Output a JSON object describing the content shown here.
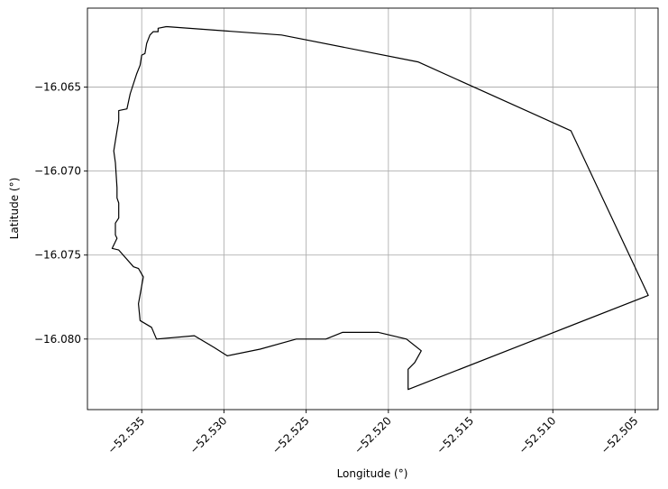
{
  "chart_data": {
    "type": "line",
    "title": "",
    "xlabel": "Longitude (°)",
    "ylabel": "Latitude (°)",
    "xlim": [
      -52.5383,
      -52.5036
    ],
    "ylim": [
      -16.0842,
      -16.0603
    ],
    "grid": true,
    "legend": "none",
    "x_ticks": [
      {
        "value": -52.535,
        "label": "−52.535"
      },
      {
        "value": -52.53,
        "label": "−52.530"
      },
      {
        "value": -52.525,
        "label": "−52.525"
      },
      {
        "value": -52.52,
        "label": "−52.520"
      },
      {
        "value": -52.515,
        "label": "−52.515"
      },
      {
        "value": -52.51,
        "label": "−52.510"
      },
      {
        "value": -52.505,
        "label": "−52.505"
      }
    ],
    "y_ticks": [
      {
        "value": -16.065,
        "label": "−16.065"
      },
      {
        "value": -16.07,
        "label": "−16.070"
      },
      {
        "value": -16.075,
        "label": "−16.075"
      },
      {
        "value": -16.08,
        "label": "−16.080"
      }
    ],
    "series": [
      {
        "color": "#000000",
        "x": [
          -52.5335,
          -52.5265,
          -52.5182,
          -52.5089,
          -52.5042,
          -52.5188,
          -52.5188,
          -52.5184,
          -52.518,
          -52.5189,
          -52.5206,
          -52.5216,
          -52.5228,
          -52.5238,
          -52.5256,
          -52.5278,
          -52.5298,
          -52.5306,
          -52.5318,
          -52.5341,
          -52.5344,
          -52.5351,
          -52.5352,
          -52.5349,
          -52.5352,
          -52.5355,
          -52.5364,
          -52.5368,
          -52.5365,
          -52.5366,
          -52.5366,
          -52.5364,
          -52.5364,
          -52.5365,
          -52.5365,
          -52.5366,
          -52.5367,
          -52.5365,
          -52.5364,
          -52.5364,
          -52.5359,
          -52.5357,
          -52.5353,
          -52.5351,
          -52.535,
          -52.5348,
          -52.5347,
          -52.5345,
          -52.5343,
          -52.534,
          -52.534,
          -52.5335
        ],
        "y": [
          -16.0614,
          -16.0619,
          -16.0635,
          -16.0676,
          -16.0774,
          -16.083,
          -16.0818,
          -16.0814,
          -16.0807,
          -16.08,
          -16.0796,
          -16.0796,
          -16.0796,
          -16.08,
          -16.08,
          -16.0806,
          -16.081,
          -16.0805,
          -16.0798,
          -16.08,
          -16.0793,
          -16.0789,
          -16.0779,
          -16.0763,
          -16.0758,
          -16.0757,
          -16.0747,
          -16.0746,
          -16.074,
          -16.0738,
          -16.0731,
          -16.0728,
          -16.0719,
          -16.0716,
          -16.071,
          -16.0695,
          -16.0688,
          -16.0676,
          -16.067,
          -16.0664,
          -16.0663,
          -16.0654,
          -16.0642,
          -16.0637,
          -16.0631,
          -16.063,
          -16.0624,
          -16.0619,
          -16.0617,
          -16.0617,
          -16.0615,
          -16.0614
        ]
      }
    ]
  }
}
